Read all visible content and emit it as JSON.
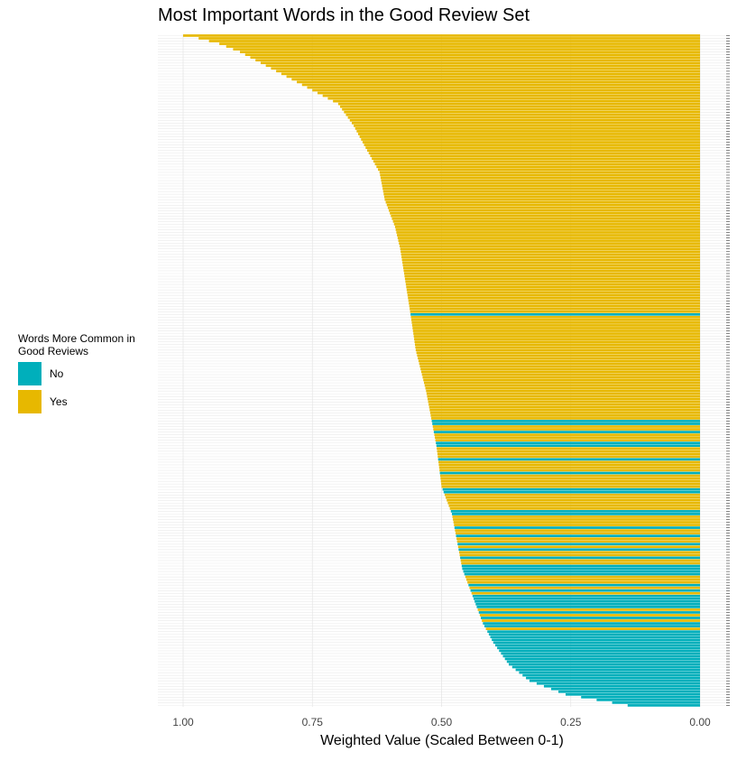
{
  "chart_data": {
    "type": "bar",
    "orientation": "horizontal",
    "title": "Most Important Words in the Good Review Set",
    "xlabel": "Weighted Value (Scaled Between 0-1)",
    "ylabel": "",
    "x_reversed": true,
    "xlim": [
      0,
      1.05
    ],
    "x_ticks": [
      "1.00",
      "0.75",
      "0.50",
      "0.25",
      "0.00"
    ],
    "x_tick_values": [
      1.0,
      0.75,
      0.5,
      0.25,
      0.0
    ],
    "grid": true,
    "legend": {
      "title": "Words More Common in Good Reviews",
      "position": "left",
      "entries": [
        {
          "label": "No",
          "color": "#00AFBB"
        },
        {
          "label": "Yes",
          "color": "#E7B800"
        }
      ]
    },
    "colors": {
      "No": "#00AFBB",
      "Yes": "#E7B800"
    },
    "n_bars": 246,
    "value_profile": [
      [
        0,
        1.0
      ],
      [
        1,
        0.97
      ],
      [
        3,
        0.93
      ],
      [
        6,
        0.89
      ],
      [
        10,
        0.85
      ],
      [
        14,
        0.81
      ],
      [
        18,
        0.77
      ],
      [
        25,
        0.7
      ],
      [
        33,
        0.67
      ],
      [
        40,
        0.65
      ],
      [
        50,
        0.62
      ],
      [
        60,
        0.61
      ],
      [
        70,
        0.59
      ],
      [
        78,
        0.58
      ],
      [
        90,
        0.57
      ],
      [
        102,
        0.56
      ],
      [
        115,
        0.55
      ],
      [
        130,
        0.53
      ],
      [
        140,
        0.52
      ],
      [
        150,
        0.51
      ],
      [
        165,
        0.5
      ],
      [
        175,
        0.48
      ],
      [
        185,
        0.47
      ],
      [
        195,
        0.46
      ],
      [
        205,
        0.44
      ],
      [
        215,
        0.42
      ],
      [
        222,
        0.4
      ],
      [
        230,
        0.37
      ],
      [
        236,
        0.33
      ],
      [
        241,
        0.26
      ],
      [
        245,
        0.14
      ]
    ],
    "no_bar_indices": [
      102,
      141,
      142,
      145,
      149,
      150,
      155,
      160,
      166,
      167,
      174,
      175,
      180,
      183,
      186,
      188,
      191,
      194,
      195,
      196,
      197,
      201,
      203,
      205,
      206,
      207,
      208,
      209,
      211,
      213,
      215,
      216,
      218,
      219,
      220,
      221,
      222,
      223,
      224,
      225,
      226,
      227,
      228,
      229,
      230,
      231,
      232,
      233,
      234,
      235,
      236,
      237,
      238,
      239,
      240,
      241,
      242,
      243,
      244,
      245
    ]
  }
}
